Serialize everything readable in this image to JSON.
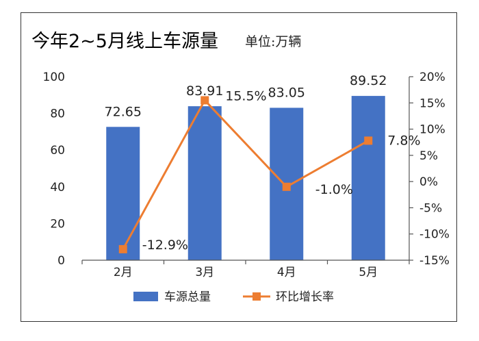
{
  "header": {
    "title": "今年2~5月线上车源量",
    "unit": "单位:万辆"
  },
  "colors": {
    "bar": "#4472c4",
    "line": "#ed7d31",
    "axis": "#555555"
  },
  "chart_data": {
    "type": "bar",
    "title": "今年2~5月线上车源量",
    "categories": [
      "2月",
      "3月",
      "4月",
      "5月"
    ],
    "series": [
      {
        "name": "车源总量",
        "type": "bar",
        "axis": "left",
        "values": [
          72.65,
          83.91,
          83.05,
          89.52
        ],
        "labels": [
          "72.65",
          "83.91",
          "83.05",
          "89.52"
        ]
      },
      {
        "name": "环比增长率",
        "type": "line",
        "axis": "right",
        "values": [
          -12.9,
          15.5,
          -1.0,
          7.8
        ],
        "labels": [
          "-12.9%",
          "15.5%",
          "-1.0%",
          "7.8%"
        ]
      }
    ],
    "y_left": {
      "min": 0,
      "max": 100,
      "step": 20,
      "ticks": [
        "0",
        "20",
        "40",
        "60",
        "80",
        "100"
      ]
    },
    "y_right": {
      "min": -15,
      "max": 20,
      "step": 5,
      "ticks": [
        "-15%",
        "-10%",
        "-5%",
        "0%",
        "5%",
        "10%",
        "15%",
        "20%"
      ]
    },
    "legend": "bottom",
    "grid": false
  }
}
